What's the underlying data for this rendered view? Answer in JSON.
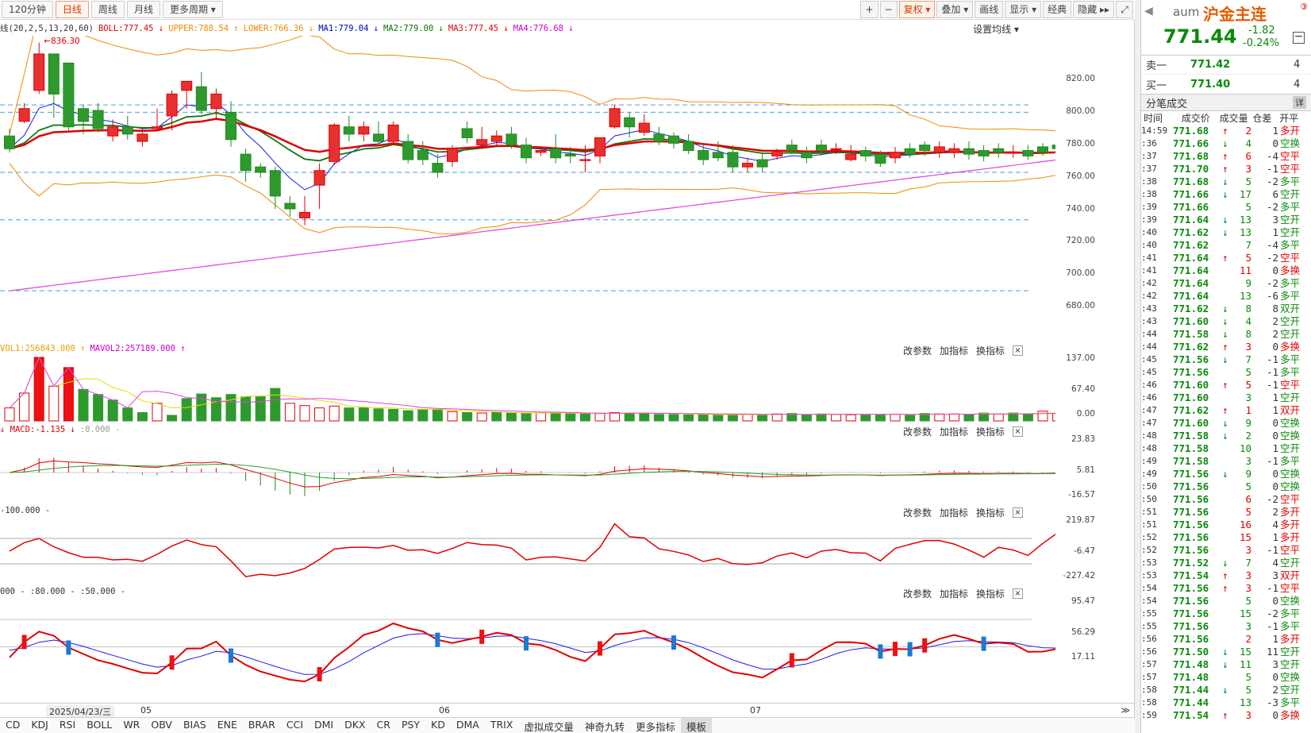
{
  "toolbar": {
    "periods": [
      {
        "label": "120分钟",
        "active": false
      },
      {
        "label": "日线",
        "active": true
      },
      {
        "label": "周线",
        "active": false
      },
      {
        "label": "月线",
        "active": false
      },
      {
        "label": "更多周期 ▾",
        "active": false
      }
    ],
    "right_buttons": [
      {
        "label": "+",
        "name": "zoom-in-button",
        "hl": false
      },
      {
        "label": "−",
        "name": "zoom-out-button",
        "hl": false
      },
      {
        "label": "复权 ▾",
        "name": "adjust-button",
        "hl": true
      },
      {
        "label": "叠加 ▾",
        "name": "overlay-button",
        "hl": false
      },
      {
        "label": "画线",
        "name": "draw-line-button",
        "hl": false
      },
      {
        "label": "显示 ▾",
        "name": "display-button",
        "hl": false
      },
      {
        "label": "经典",
        "name": "classic-button",
        "hl": false
      },
      {
        "label": "隐藏 ▸▸",
        "name": "hide-button",
        "hl": false
      },
      {
        "label": "⤢",
        "name": "fullscreen-button",
        "hl": false
      }
    ]
  },
  "main_legend": {
    "params": "线(20,2,5,13,20,60)",
    "items": [
      {
        "text": "BOLL:777.45 ↓",
        "color": "#e00000"
      },
      {
        "text": "UPPER:788.54 ↑",
        "color": "#f08a00"
      },
      {
        "text": "LOWER:766.36 ↓",
        "color": "#f08a00"
      },
      {
        "text": "MA1:779.04 ↓",
        "color": "#0000cc"
      },
      {
        "text": "MA2:779.00 ↓",
        "color": "#007700"
      },
      {
        "text": "MA3:777.45 ↓",
        "color": "#e00000"
      },
      {
        "text": "MA4:776.68 ↓",
        "color": "#cc00cc"
      }
    ],
    "ma_setting": "设置均线 ▾",
    "peak_label": "836.30"
  },
  "panel_controls": {
    "params": "改参数",
    "add": "加指标",
    "switch": "换指标",
    "close": "×"
  },
  "vol_legend": [
    {
      "text": "VOL1:256843.000 ↑",
      "color": "#e8a000"
    },
    {
      "text": "MAVOL2:257189.000 ↑",
      "color": "#cc00cc"
    }
  ],
  "macd_legend": [
    {
      "text": "↓ MACD:-1.135 ↓",
      "color": "#e00000"
    },
    {
      "text": ":0.000 -",
      "color": "#999999"
    }
  ],
  "cci_legend": [
    {
      "text": "-100.000 -",
      "color": "#333333"
    }
  ],
  "kd_legend": [
    {
      "text": "000 - :80.000 - :50.000 -",
      "color": "#333333"
    }
  ],
  "axes": {
    "main": [
      "820.00",
      "800.00",
      "780.00",
      "760.00",
      "740.00",
      "720.00",
      "700.00",
      "680.00"
    ],
    "vol": [
      "137.00",
      "67.40",
      "0.00"
    ],
    "macd": [
      "23.83",
      "5.81",
      "-16.57"
    ],
    "cci": [
      "219.87",
      "-6.47",
      "-227.42"
    ],
    "kd": [
      "95.47",
      "56.29",
      "17.11"
    ]
  },
  "date_axis": {
    "cursor": "2025/04/23/三",
    "months": [
      "05",
      "06",
      "07"
    ]
  },
  "bottom_tabs": [
    "CD",
    "KDJ",
    "RSI",
    "BOLL",
    "WR",
    "OBV",
    "BIAS",
    "ENE",
    "BRAR",
    "CCI",
    "DMI",
    "DKX",
    "CR",
    "PSY",
    "KD",
    "DMA",
    "TRIX",
    "虚拟成交量",
    "神奇九转",
    "更多指标",
    "模板"
  ],
  "bottom_tab_active": "模板",
  "quote": {
    "code": "aum",
    "name": "沪金主连",
    "price": "771.44",
    "change": "-1.82",
    "change_pct": "-0.24%",
    "badge": "③",
    "sell_label": "卖一",
    "sell_price": "771.42",
    "sell_vol": "4",
    "buy_label": "买一",
    "buy_price": "771.40",
    "buy_vol": "4",
    "trades_title": "分笔成交",
    "detail_button": "详",
    "columns": [
      "时间",
      "成交价",
      "成交量",
      "仓差",
      "开平"
    ]
  },
  "trades": [
    [
      "14:59",
      "771.68",
      "up",
      "2",
      "1",
      "多开",
      "up"
    ],
    [
      ":36",
      "771.66",
      "down",
      "4",
      "0",
      "空换",
      "down"
    ],
    [
      ":37",
      "771.68",
      "up",
      "6",
      "-4",
      "空平",
      "up"
    ],
    [
      ":37",
      "771.70",
      "up",
      "3",
      "-1",
      "空平",
      "up"
    ],
    [
      ":38",
      "771.68",
      "down",
      "5",
      "-2",
      "多平",
      "down"
    ],
    [
      ":38",
      "771.66",
      "down",
      "17",
      "6",
      "空开",
      "down"
    ],
    [
      ":39",
      "771.66",
      "",
      "5",
      "-2",
      "多平",
      "down"
    ],
    [
      ":39",
      "771.64",
      "down",
      "13",
      "3",
      "空开",
      "down"
    ],
    [
      ":40",
      "771.62",
      "down",
      "13",
      "1",
      "空开",
      "down"
    ],
    [
      ":40",
      "771.62",
      "",
      "7",
      "-4",
      "多平",
      "down"
    ],
    [
      ":41",
      "771.64",
      "up",
      "5",
      "-2",
      "空平",
      "up"
    ],
    [
      ":41",
      "771.64",
      "",
      "11",
      "0",
      "多换",
      "up"
    ],
    [
      ":42",
      "771.64",
      "",
      "9",
      "-2",
      "多平",
      "down"
    ],
    [
      ":42",
      "771.64",
      "",
      "13",
      "-6",
      "多平",
      "down"
    ],
    [
      ":43",
      "771.62",
      "down",
      "8",
      "8",
      "双开",
      "down"
    ],
    [
      ":43",
      "771.60",
      "down",
      "4",
      "2",
      "空开",
      "down"
    ],
    [
      ":44",
      "771.58",
      "down",
      "8",
      "2",
      "空开",
      "down"
    ],
    [
      ":44",
      "771.62",
      "up",
      "3",
      "0",
      "多换",
      "up"
    ],
    [
      ":45",
      "771.56",
      "down",
      "7",
      "-1",
      "多平",
      "down"
    ],
    [
      ":45",
      "771.56",
      "",
      "5",
      "-1",
      "多平",
      "down"
    ],
    [
      ":46",
      "771.60",
      "up",
      "5",
      "-1",
      "空平",
      "up"
    ],
    [
      ":46",
      "771.60",
      "",
      "3",
      "1",
      "空开",
      "down"
    ],
    [
      ":47",
      "771.62",
      "up",
      "1",
      "1",
      "双开",
      "up"
    ],
    [
      ":47",
      "771.60",
      "down",
      "9",
      "0",
      "空换",
      "down"
    ],
    [
      ":48",
      "771.58",
      "down",
      "2",
      "0",
      "空换",
      "down"
    ],
    [
      ":48",
      "771.58",
      "",
      "10",
      "1",
      "空开",
      "down"
    ],
    [
      ":49",
      "771.58",
      "",
      "3",
      "-1",
      "多平",
      "down"
    ],
    [
      ":49",
      "771.56",
      "down",
      "9",
      "0",
      "空换",
      "down"
    ],
    [
      ":50",
      "771.56",
      "",
      "5",
      "0",
      "空换",
      "down"
    ],
    [
      ":50",
      "771.56",
      "",
      "6",
      "-2",
      "空平",
      "up"
    ],
    [
      ":51",
      "771.56",
      "",
      "5",
      "2",
      "多开",
      "up"
    ],
    [
      ":51",
      "771.56",
      "",
      "16",
      "4",
      "多开",
      "up"
    ],
    [
      ":52",
      "771.56",
      "",
      "15",
      "1",
      "多开",
      "up"
    ],
    [
      ":52",
      "771.56",
      "",
      "3",
      "-1",
      "空平",
      "up"
    ],
    [
      ":53",
      "771.52",
      "down",
      "7",
      "4",
      "空开",
      "down"
    ],
    [
      ":53",
      "771.54",
      "up",
      "3",
      "3",
      "双开",
      "up"
    ],
    [
      ":54",
      "771.56",
      "up",
      "3",
      "-1",
      "空平",
      "up"
    ],
    [
      ":54",
      "771.56",
      "",
      "5",
      "0",
      "空换",
      "down"
    ],
    [
      ":55",
      "771.56",
      "",
      "15",
      "-2",
      "多平",
      "down"
    ],
    [
      ":55",
      "771.56",
      "",
      "3",
      "-1",
      "多平",
      "down"
    ],
    [
      ":56",
      "771.56",
      "",
      "2",
      "1",
      "多开",
      "up"
    ],
    [
      ":56",
      "771.50",
      "down",
      "15",
      "11",
      "空开",
      "down"
    ],
    [
      ":57",
      "771.48",
      "down",
      "11",
      "3",
      "空开",
      "down"
    ],
    [
      ":57",
      "771.48",
      "",
      "5",
      "0",
      "空换",
      "down"
    ],
    [
      ":58",
      "771.44",
      "down",
      "5",
      "2",
      "空开",
      "down"
    ],
    [
      ":58",
      "771.44",
      "",
      "13",
      "-3",
      "多平",
      "down"
    ],
    [
      ":59",
      "771.54",
      "up",
      "3",
      "0",
      "多换",
      "up"
    ]
  ],
  "chart_data": {
    "type": "candlestick",
    "ylim": [
      670,
      840
    ],
    "candles": [
      [
        785,
        778,
        789,
        776
      ],
      [
        793,
        800,
        803,
        792
      ],
      [
        810,
        830,
        836.3,
        808
      ],
      [
        830,
        808,
        830,
        795
      ],
      [
        825,
        790,
        825,
        788
      ],
      [
        800,
        793,
        802,
        786
      ],
      [
        799,
        789,
        803,
        787
      ],
      [
        785,
        790,
        794,
        782
      ],
      [
        790,
        786,
        796,
        783
      ],
      [
        782,
        786,
        789,
        779
      ],
      [
        789,
        790,
        800,
        788
      ],
      [
        796,
        808,
        810,
        788
      ],
      [
        810,
        815,
        815,
        800
      ],
      [
        812,
        799,
        820,
        797
      ],
      [
        800,
        808,
        811,
        794
      ],
      [
        798,
        783,
        804,
        779
      ],
      [
        775,
        766,
        778,
        760
      ],
      [
        768,
        765,
        770,
        762
      ],
      [
        766,
        752,
        768,
        745
      ],
      [
        748,
        745,
        752,
        741
      ],
      [
        740,
        743,
        752,
        736
      ],
      [
        758,
        766,
        770,
        745
      ],
      [
        771,
        791,
        792,
        769
      ],
      [
        790,
        786,
        796,
        782
      ],
      [
        786,
        790,
        793,
        782
      ],
      [
        786,
        782,
        793,
        780
      ],
      [
        782,
        791,
        793,
        780
      ],
      [
        782,
        772,
        786,
        770
      ],
      [
        777,
        772,
        782,
        769
      ],
      [
        770,
        765,
        775,
        762
      ],
      [
        771,
        778,
        780,
        768
      ],
      [
        789,
        784,
        793,
        781
      ],
      [
        780,
        783,
        790,
        778
      ],
      [
        782,
        785,
        788,
        780
      ],
      [
        786,
        780,
        790,
        778
      ],
      [
        780,
        773,
        784,
        770
      ],
      [
        776,
        777,
        779,
        774
      ],
      [
        778,
        773,
        786,
        770
      ],
      [
        775,
        774,
        779,
        770
      ],
      [
        772,
        772,
        780,
        765
      ],
      [
        774,
        784,
        784,
        770
      ],
      [
        790,
        800,
        802,
        789
      ],
      [
        795,
        790,
        798,
        784
      ],
      [
        787,
        792,
        797,
        785
      ],
      [
        786,
        782,
        790,
        780
      ],
      [
        785,
        781,
        787,
        778
      ],
      [
        782,
        777,
        786,
        775
      ],
      [
        777,
        772,
        781,
        769
      ],
      [
        776,
        773,
        782,
        771
      ],
      [
        776,
        768,
        780,
        765
      ],
      [
        768,
        770,
        773,
        765
      ],
      [
        772,
        768,
        776,
        765
      ],
      [
        774,
        776,
        778,
        772
      ],
      [
        780,
        777,
        783,
        775
      ],
      [
        776,
        773,
        779,
        770
      ],
      [
        780,
        777,
        783,
        774
      ],
      [
        778,
        778,
        781,
        775
      ],
      [
        772,
        775,
        780,
        771
      ],
      [
        777,
        774,
        779,
        771
      ],
      [
        775,
        770,
        777,
        768
      ],
      [
        773,
        776,
        779,
        770
      ],
      [
        778,
        775,
        781,
        773
      ],
      [
        780,
        777,
        782,
        774
      ],
      [
        776,
        779,
        782,
        773
      ],
      [
        776,
        778,
        781,
        773
      ],
      [
        778,
        775,
        782,
        772
      ],
      [
        777,
        774,
        780,
        771
      ],
      [
        778,
        776,
        781,
        773
      ],
      [
        776,
        776,
        780,
        773
      ],
      [
        777,
        774,
        780,
        772
      ],
      [
        779,
        776,
        781,
        774
      ],
      [
        780,
        778,
        784,
        775
      ],
      [
        785,
        791,
        792,
        780
      ],
      [
        791,
        780,
        791,
        778
      ],
      [
        777,
        775,
        780,
        772
      ],
      [
        775,
        772,
        778,
        770
      ],
      [
        772,
        771,
        774,
        769
      ]
    ],
    "vol": [
      28,
      60,
      137,
      75,
      115,
      68,
      57,
      45,
      28,
      18,
      38,
      12,
      48,
      58,
      50,
      57,
      52,
      52,
      70,
      38,
      33,
      28,
      32,
      28,
      28,
      26,
      25,
      22,
      24,
      25,
      20,
      18,
      17,
      18,
      17,
      16,
      17,
      17,
      16,
      16,
      16,
      18,
      17,
      17,
      14,
      14,
      13,
      14,
      13,
      14,
      14,
      13,
      15,
      16,
      13,
      15,
      14,
      13,
      14,
      14,
      14,
      13,
      16,
      15,
      15,
      14,
      17,
      15,
      17,
      15,
      21,
      16,
      20,
      14,
      21,
      16,
      15
    ],
    "vol_up": [
      true,
      true,
      true,
      true,
      true,
      false,
      false,
      false,
      false,
      false,
      true,
      false,
      false,
      false,
      false,
      false,
      false,
      false,
      false,
      true,
      true,
      true,
      true,
      false,
      false,
      false,
      false,
      false,
      false,
      false,
      true,
      false,
      true,
      false,
      false,
      false,
      true,
      false,
      false,
      false,
      true,
      true,
      false,
      false,
      false,
      false,
      false,
      false,
      false,
      false,
      true,
      false,
      true,
      false,
      false,
      false,
      true,
      true,
      false,
      false,
      true,
      false,
      false,
      true,
      true,
      false,
      false,
      true,
      false,
      false,
      true,
      true,
      true,
      false,
      false,
      false,
      false
    ]
  }
}
